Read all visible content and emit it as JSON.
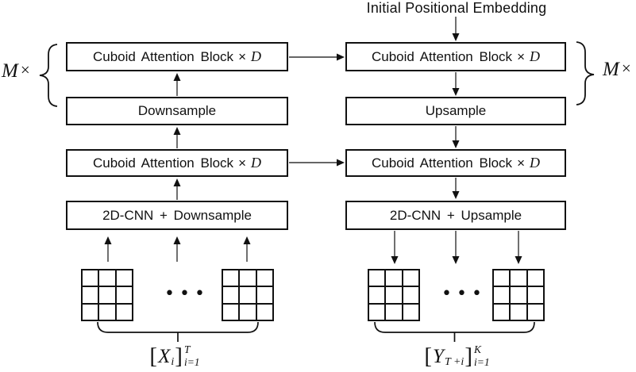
{
  "title": "Initial Positional Embedding",
  "labels": {
    "cuboid_attention": "Cuboid Attention Block",
    "times": "×",
    "depth_var": "D",
    "downsample": "Downsample",
    "upsample": "Upsample",
    "cnn_downsample": "2D-CNN + Downsample",
    "cnn_upsample": "2D-CNN + Upsample",
    "m": "M",
    "m_times": "×",
    "ellipsis": "•••"
  },
  "math": {
    "input": {
      "open": "[",
      "var": "X",
      "sub": "i",
      "close": "]",
      "sup": "T",
      "bound": "i=1"
    },
    "output": {
      "open": "[",
      "var": "Y",
      "sub": "T +i",
      "close": "]",
      "sup": "K",
      "bound": "i=1"
    }
  },
  "grids": {
    "rows": 3,
    "cols": 3,
    "count": 4
  },
  "colors": {
    "line": "#111111",
    "shaft": "#333333",
    "background": "#ffffff",
    "text": "#111111"
  }
}
